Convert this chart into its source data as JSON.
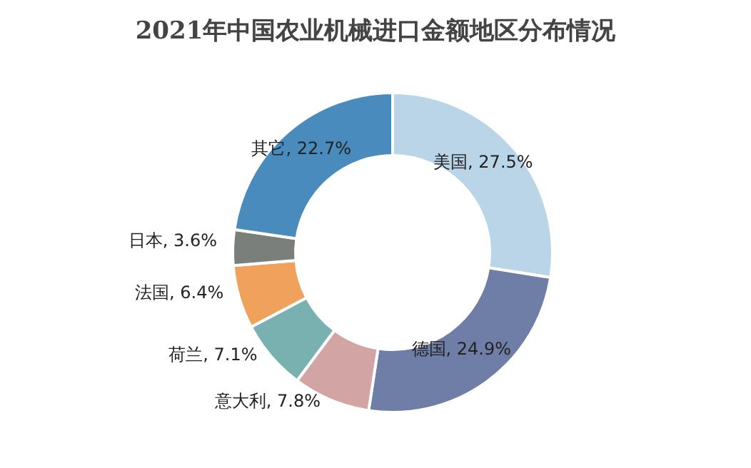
{
  "chart_data": {
    "type": "donut",
    "title": "2021年中国农业机械进口金额地区分布情况",
    "categories": [
      "美国",
      "德国",
      "意大利",
      "荷兰",
      "法国",
      "日本",
      "其它"
    ],
    "values": [
      27.5,
      24.9,
      7.8,
      7.1,
      6.4,
      3.6,
      22.7
    ],
    "value_labels": [
      ", 27.5%",
      ", 24.9%",
      ", 7.8%",
      ", 7.1%",
      ", 6.4%",
      ", 3.6%",
      ", 22.7%"
    ],
    "colors": [
      "#b9d5e7",
      "#6f7ea6",
      "#d3a4a4",
      "#79b1b0",
      "#f0a15c",
      "#7a7f7b",
      "#4a8bbd"
    ],
    "legend": false
  }
}
